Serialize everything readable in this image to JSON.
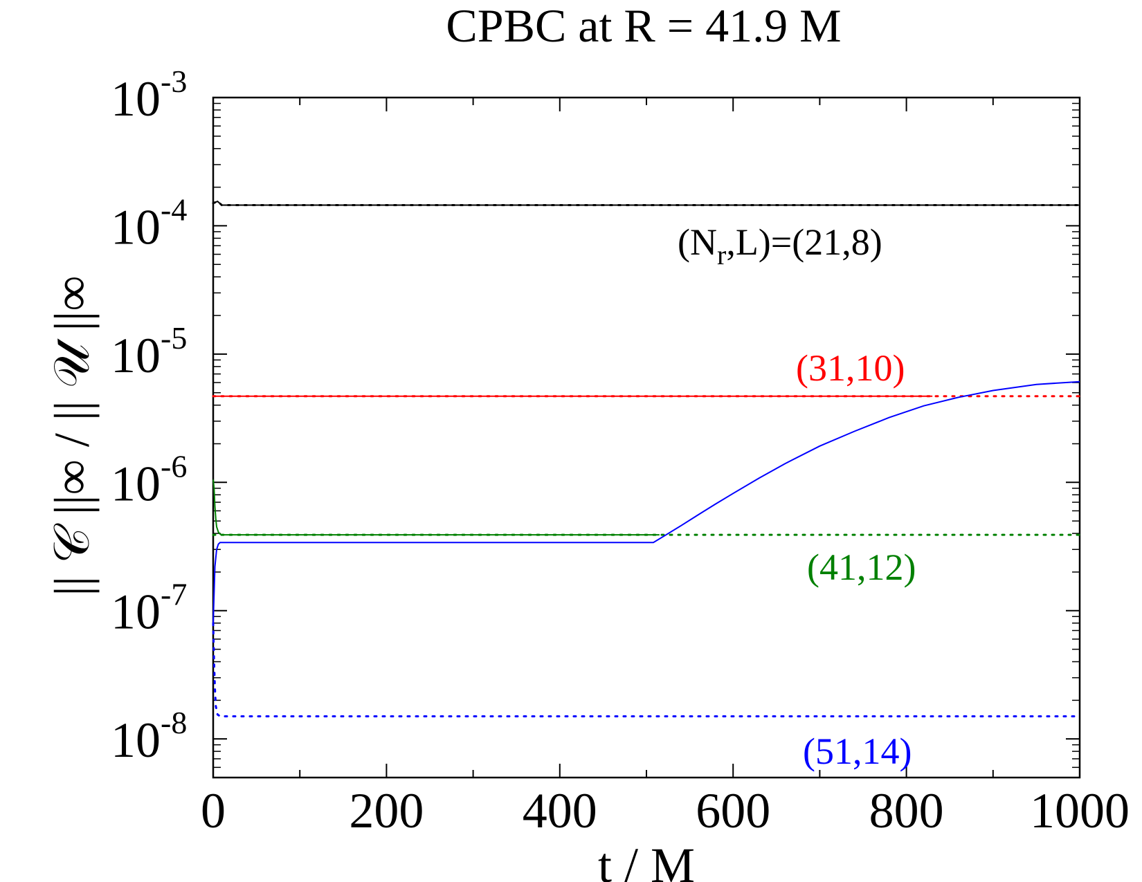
{
  "chart_data": {
    "type": "line",
    "title": "CPBC at R = 41.9 M",
    "xlabel": "t / M",
    "ylabel": "|| 𝒞 ||∞ / ||   𝒰 ||∞",
    "xlim": [
      0,
      1000
    ],
    "ylim": [
      5e-09,
      0.001
    ],
    "yscale": "log",
    "grid": false,
    "x_ticks": [
      0,
      200,
      400,
      600,
      800,
      1000
    ],
    "x_tick_labels": [
      "0",
      "200",
      "400",
      "600",
      "800",
      "1000"
    ],
    "y_ticks": [
      1e-08,
      1e-07,
      1e-06,
      1e-05,
      0.0001,
      0.001
    ],
    "y_tick_labels": [
      {
        "base": "10",
        "exp": "-8"
      },
      {
        "base": "10",
        "exp": "-7"
      },
      {
        "base": "10",
        "exp": "-6"
      },
      {
        "base": "10",
        "exp": "-5"
      },
      {
        "base": "10",
        "exp": "-4"
      },
      {
        "base": "10",
        "exp": "-3"
      }
    ],
    "series": [
      {
        "name": "(N_r,L)=(21,8)",
        "color": "#000000",
        "style": "dotted",
        "x": [
          0,
          5,
          10,
          20,
          100,
          300,
          500,
          700,
          900,
          1000
        ],
        "y": [
          0.00015,
          0.000155,
          0.000145,
          0.000145,
          0.000145,
          0.000145,
          0.000145,
          0.000145,
          0.000145,
          0.000145
        ]
      },
      {
        "name": "(N_r,L)=(21,8)",
        "color": "#000000",
        "style": "solid",
        "x": [
          0,
          5,
          10,
          20,
          100,
          300,
          500,
          700,
          900,
          1000
        ],
        "y": [
          0.00015,
          0.000155,
          0.000145,
          0.000145,
          0.000145,
          0.000145,
          0.000145,
          0.000145,
          0.000145,
          0.000145
        ]
      },
      {
        "name": "(31,10)",
        "color": "#ff0000",
        "style": "dotted",
        "x": [
          0,
          100,
          300,
          500,
          700,
          900,
          1000
        ],
        "y": [
          4.7e-06,
          4.7e-06,
          4.7e-06,
          4.7e-06,
          4.7e-06,
          4.7e-06,
          4.7e-06
        ]
      },
      {
        "name": "(31,10)",
        "color": "#ff0000",
        "style": "solid",
        "x": [
          0,
          100,
          300,
          500,
          700,
          830
        ],
        "y": [
          4.7e-06,
          4.7e-06,
          4.7e-06,
          4.7e-06,
          4.7e-06,
          4.7e-06
        ]
      },
      {
        "name": "(41,12)",
        "color": "#008000",
        "style": "dotted",
        "x": [
          0,
          100,
          300,
          500,
          700,
          900,
          1000
        ],
        "y": [
          3.9e-07,
          3.9e-07,
          3.9e-07,
          3.9e-07,
          3.9e-07,
          3.9e-07,
          3.9e-07
        ]
      },
      {
        "name": "(41,12)",
        "color": "#008000",
        "style": "solid",
        "x": [
          0,
          1,
          2,
          3,
          4,
          6,
          8,
          10,
          20,
          100,
          300,
          515
        ],
        "y": [
          1.05e-06,
          9e-07,
          6.5e-07,
          5.2e-07,
          4.5e-07,
          4.1e-07,
          3.95e-07,
          3.9e-07,
          3.9e-07,
          3.9e-07,
          3.9e-07,
          3.9e-07
        ]
      },
      {
        "name": "(51,14)",
        "color": "#0000ff",
        "style": "dotted",
        "x": [
          0,
          1,
          2,
          3,
          5,
          8,
          12,
          100,
          300,
          500,
          700,
          900,
          1000
        ],
        "y": [
          8e-08,
          4e-08,
          2.5e-08,
          1.8e-08,
          1.55e-08,
          1.5e-08,
          1.5e-08,
          1.5e-08,
          1.5e-08,
          1.5e-08,
          1.5e-08,
          1.5e-08,
          1.5e-08
        ]
      },
      {
        "name": "(51,14)",
        "color": "#0000ff",
        "style": "solid",
        "x": [
          0,
          2,
          4,
          6,
          8,
          100,
          300,
          508,
          520,
          540,
          560,
          580,
          600,
          630,
          660,
          700,
          740,
          780,
          820,
          860,
          900,
          950,
          1000
        ],
        "y": [
          8e-08,
          2.2e-07,
          3e-07,
          3.3e-07,
          3.4e-07,
          3.4e-07,
          3.4e-07,
          3.4e-07,
          3.8e-07,
          4.6e-07,
          5.6e-07,
          6.8e-07,
          8.2e-07,
          1.08e-06,
          1.4e-06,
          1.92e-06,
          2.5e-06,
          3.2e-06,
          3.95e-06,
          4.6e-06,
          5.2e-06,
          5.8e-06,
          6.1e-06
        ]
      }
    ],
    "annotations": [
      {
        "text": "(N",
        "sub": "r",
        "rest": ",L)=(21,8)",
        "color": "#000000"
      },
      {
        "text": "(31,10)",
        "color": "#ff0000"
      },
      {
        "text": "(41,12)",
        "color": "#008000"
      },
      {
        "text": "(51,14)",
        "color": "#0000ff"
      }
    ]
  }
}
